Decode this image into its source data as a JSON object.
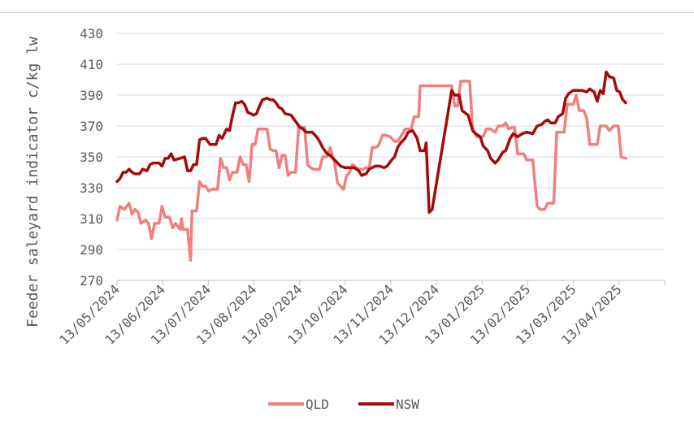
{
  "chart_data": {
    "type": "line",
    "title": "",
    "xlabel": "",
    "ylabel": "Feeder saleyard indicator c/kg lw",
    "ylim": [
      270,
      430
    ],
    "y_ticks": [
      270,
      290,
      310,
      330,
      350,
      370,
      390,
      410,
      430
    ],
    "x_tick_labels": [
      "13/05/2024",
      "13/06/2024",
      "13/07/2024",
      "13/08/2024",
      "13/09/2024",
      "13/10/2024",
      "13/11/2024",
      "13/12/2024",
      "13/01/2025",
      "13/02/2025",
      "13/03/2025",
      "13/04/2025"
    ],
    "x_range": [
      "2024-05-13",
      "2025-05-13"
    ],
    "grid": "horizontal",
    "legend": "bottom",
    "series": [
      {
        "name": "QLD",
        "color": "#f08080",
        "points": [
          [
            "2024-05-13",
            309
          ],
          [
            "2024-05-15",
            318
          ],
          [
            "2024-05-18",
            316
          ],
          [
            "2024-05-21",
            320
          ],
          [
            "2024-05-23",
            313
          ],
          [
            "2024-05-25",
            316
          ],
          [
            "2024-05-27",
            314
          ],
          [
            "2024-05-29",
            307
          ],
          [
            "2024-06-01",
            309
          ],
          [
            "2024-06-03",
            307
          ],
          [
            "2024-06-05",
            297
          ],
          [
            "2024-06-07",
            307
          ],
          [
            "2024-06-10",
            307
          ],
          [
            "2024-06-12",
            318
          ],
          [
            "2024-06-14",
            311
          ],
          [
            "2024-06-17",
            311
          ],
          [
            "2024-06-19",
            304
          ],
          [
            "2024-06-21",
            307
          ],
          [
            "2024-06-24",
            303
          ],
          [
            "2024-06-25",
            310
          ],
          [
            "2024-06-26",
            303
          ],
          [
            "2024-06-29",
            303
          ],
          [
            "2024-07-01",
            283
          ],
          [
            "2024-07-02",
            315
          ],
          [
            "2024-07-05",
            315
          ],
          [
            "2024-07-07",
            334
          ],
          [
            "2024-07-09",
            331
          ],
          [
            "2024-07-11",
            331
          ],
          [
            "2024-07-13",
            328
          ],
          [
            "2024-07-16",
            329
          ],
          [
            "2024-07-19",
            329
          ],
          [
            "2024-07-21",
            349
          ],
          [
            "2024-07-23",
            343
          ],
          [
            "2024-07-25",
            343
          ],
          [
            "2024-07-27",
            335
          ],
          [
            "2024-07-29",
            340
          ],
          [
            "2024-08-01",
            340
          ],
          [
            "2024-08-03",
            350
          ],
          [
            "2024-08-05",
            345
          ],
          [
            "2024-08-07",
            345
          ],
          [
            "2024-08-09",
            334
          ],
          [
            "2024-08-11",
            358
          ],
          [
            "2024-08-13",
            358
          ],
          [
            "2024-08-15",
            368
          ],
          [
            "2024-08-19",
            368
          ],
          [
            "2024-08-21",
            368
          ],
          [
            "2024-08-23",
            355
          ],
          [
            "2024-08-25",
            354
          ],
          [
            "2024-08-27",
            354
          ],
          [
            "2024-08-29",
            343
          ],
          [
            "2024-08-31",
            351
          ],
          [
            "2024-09-02",
            351
          ],
          [
            "2024-09-04",
            338
          ],
          [
            "2024-09-06",
            340
          ],
          [
            "2024-09-09",
            340
          ],
          [
            "2024-09-11",
            369
          ],
          [
            "2024-09-13",
            369
          ],
          [
            "2024-09-15",
            369
          ],
          [
            "2024-09-17",
            345
          ],
          [
            "2024-09-19",
            343
          ],
          [
            "2024-09-21",
            342
          ],
          [
            "2024-09-25",
            342
          ],
          [
            "2024-09-27",
            350
          ],
          [
            "2024-09-30",
            350
          ],
          [
            "2024-10-02",
            356
          ],
          [
            "2024-10-05",
            346
          ],
          [
            "2024-10-07",
            333
          ],
          [
            "2024-10-09",
            331
          ],
          [
            "2024-10-11",
            329
          ],
          [
            "2024-10-13",
            338
          ],
          [
            "2024-10-15",
            340
          ],
          [
            "2024-10-17",
            345
          ],
          [
            "2024-10-21",
            342
          ],
          [
            "2024-10-24",
            342
          ],
          [
            "2024-10-26",
            343
          ],
          [
            "2024-10-28",
            342
          ],
          [
            "2024-10-30",
            356
          ],
          [
            "2024-11-01",
            356
          ],
          [
            "2024-11-03",
            357
          ],
          [
            "2024-11-06",
            364
          ],
          [
            "2024-11-08",
            364
          ],
          [
            "2024-11-11",
            363
          ],
          [
            "2024-11-14",
            360
          ],
          [
            "2024-11-16",
            360
          ],
          [
            "2024-11-18",
            363
          ],
          [
            "2024-11-21",
            368
          ],
          [
            "2024-11-25",
            368
          ],
          [
            "2024-11-27",
            376
          ],
          [
            "2024-11-30",
            376
          ],
          [
            "2024-12-01",
            396
          ],
          [
            "2024-12-10",
            396
          ],
          [
            "2024-12-22",
            396
          ],
          [
            "2024-12-24",
            383
          ],
          [
            "2024-12-26",
            383
          ],
          [
            "2024-12-28",
            399
          ],
          [
            "2025-01-03",
            399
          ],
          [
            "2025-01-05",
            368
          ],
          [
            "2025-01-08",
            363
          ],
          [
            "2025-01-12",
            363
          ],
          [
            "2025-01-14",
            368
          ],
          [
            "2025-01-17",
            368
          ],
          [
            "2025-01-20",
            366
          ],
          [
            "2025-01-22",
            370
          ],
          [
            "2025-01-25",
            370
          ],
          [
            "2025-01-27",
            372
          ],
          [
            "2025-01-29",
            368
          ],
          [
            "2025-01-31",
            369
          ],
          [
            "2025-02-02",
            369
          ],
          [
            "2025-02-04",
            352
          ],
          [
            "2025-02-08",
            352
          ],
          [
            "2025-02-10",
            348
          ],
          [
            "2025-02-14",
            348
          ],
          [
            "2025-02-17",
            318
          ],
          [
            "2025-02-19",
            316
          ],
          [
            "2025-02-22",
            316
          ],
          [
            "2025-02-24",
            320
          ],
          [
            "2025-02-28",
            320
          ],
          [
            "2025-03-02",
            366
          ],
          [
            "2025-03-07",
            366
          ],
          [
            "2025-03-09",
            384
          ],
          [
            "2025-03-13",
            384
          ],
          [
            "2025-03-15",
            390
          ],
          [
            "2025-03-17",
            380
          ],
          [
            "2025-03-20",
            380
          ],
          [
            "2025-03-22",
            375
          ],
          [
            "2025-03-24",
            358
          ],
          [
            "2025-03-29",
            358
          ],
          [
            "2025-03-31",
            370
          ],
          [
            "2025-04-04",
            370
          ],
          [
            "2025-04-06",
            367
          ],
          [
            "2025-04-09",
            370
          ],
          [
            "2025-04-12",
            370
          ],
          [
            "2025-04-14",
            350
          ],
          [
            "2025-04-17",
            349
          ]
        ]
      },
      {
        "name": "NSW",
        "color": "#a50a0a",
        "points": [
          [
            "2024-05-13",
            334
          ],
          [
            "2024-05-15",
            336
          ],
          [
            "2024-05-17",
            340
          ],
          [
            "2024-05-19",
            340
          ],
          [
            "2024-05-21",
            342
          ],
          [
            "2024-05-23",
            340
          ],
          [
            "2024-05-25",
            339
          ],
          [
            "2024-05-28",
            339
          ],
          [
            "2024-05-30",
            342
          ],
          [
            "2024-06-02",
            341
          ],
          [
            "2024-06-04",
            345
          ],
          [
            "2024-06-06",
            346
          ],
          [
            "2024-06-10",
            346
          ],
          [
            "2024-06-12",
            344
          ],
          [
            "2024-06-14",
            349
          ],
          [
            "2024-06-16",
            349
          ],
          [
            "2024-06-18",
            352
          ],
          [
            "2024-06-20",
            348
          ],
          [
            "2024-06-24",
            349
          ],
          [
            "2024-06-27",
            350
          ],
          [
            "2024-06-29",
            341
          ],
          [
            "2024-07-01",
            341
          ],
          [
            "2024-07-03",
            345
          ],
          [
            "2024-07-05",
            345
          ],
          [
            "2024-07-07",
            361
          ],
          [
            "2024-07-09",
            362
          ],
          [
            "2024-07-11",
            362
          ],
          [
            "2024-07-14",
            358
          ],
          [
            "2024-07-18",
            358
          ],
          [
            "2024-07-20",
            364
          ],
          [
            "2024-07-22",
            362
          ],
          [
            "2024-07-25",
            368
          ],
          [
            "2024-07-27",
            367
          ],
          [
            "2024-07-29",
            377
          ],
          [
            "2024-07-31",
            385
          ],
          [
            "2024-08-02",
            385
          ],
          [
            "2024-08-04",
            386
          ],
          [
            "2024-08-06",
            384
          ],
          [
            "2024-08-08",
            379
          ],
          [
            "2024-08-12",
            377
          ],
          [
            "2024-08-14",
            378
          ],
          [
            "2024-08-16",
            383
          ],
          [
            "2024-08-18",
            387
          ],
          [
            "2024-08-21",
            388
          ],
          [
            "2024-08-23",
            387
          ],
          [
            "2024-08-25",
            387
          ],
          [
            "2024-08-27",
            385
          ],
          [
            "2024-08-29",
            382
          ],
          [
            "2024-08-31",
            381
          ],
          [
            "2024-09-02",
            378
          ],
          [
            "2024-09-06",
            377
          ],
          [
            "2024-09-09",
            373
          ],
          [
            "2024-09-12",
            369
          ],
          [
            "2024-09-14",
            368
          ],
          [
            "2024-09-16",
            366
          ],
          [
            "2024-09-20",
            366
          ],
          [
            "2024-09-23",
            363
          ],
          [
            "2024-09-25",
            360
          ],
          [
            "2024-09-27",
            356
          ],
          [
            "2024-09-30",
            352
          ],
          [
            "2024-10-02",
            351
          ],
          [
            "2024-10-05",
            348
          ],
          [
            "2024-10-07",
            346
          ],
          [
            "2024-10-09",
            344
          ],
          [
            "2024-10-12",
            343
          ],
          [
            "2024-10-15",
            343
          ],
          [
            "2024-10-18",
            343
          ],
          [
            "2024-10-21",
            341
          ],
          [
            "2024-10-23",
            338
          ],
          [
            "2024-10-26",
            339
          ],
          [
            "2024-10-28",
            342
          ],
          [
            "2024-11-01",
            344
          ],
          [
            "2024-11-04",
            344
          ],
          [
            "2024-11-07",
            343
          ],
          [
            "2024-11-09",
            344
          ],
          [
            "2024-11-12",
            348
          ],
          [
            "2024-11-14",
            350
          ],
          [
            "2024-11-16",
            356
          ],
          [
            "2024-11-18",
            359
          ],
          [
            "2024-11-21",
            362
          ],
          [
            "2024-11-23",
            366
          ],
          [
            "2024-11-26",
            367
          ],
          [
            "2024-11-29",
            362
          ],
          [
            "2024-12-01",
            354
          ],
          [
            "2024-12-04",
            354
          ],
          [
            "2024-12-05",
            359
          ],
          [
            "2024-12-07",
            314
          ],
          [
            "2024-12-09",
            316
          ],
          [
            "2024-12-22",
            393
          ],
          [
            "2024-12-24",
            390
          ],
          [
            "2024-12-27",
            390
          ],
          [
            "2024-12-29",
            380
          ],
          [
            "2025-01-02",
            377
          ],
          [
            "2025-01-05",
            367
          ],
          [
            "2025-01-07",
            365
          ],
          [
            "2025-01-10",
            363
          ],
          [
            "2025-01-12",
            357
          ],
          [
            "2025-01-15",
            354
          ],
          [
            "2025-01-17",
            349
          ],
          [
            "2025-01-20",
            346
          ],
          [
            "2025-01-22",
            348
          ],
          [
            "2025-01-25",
            353
          ],
          [
            "2025-01-27",
            354
          ],
          [
            "2025-01-30",
            362
          ],
          [
            "2025-02-01",
            365
          ],
          [
            "2025-02-04",
            363
          ],
          [
            "2025-02-07",
            365
          ],
          [
            "2025-02-10",
            366
          ],
          [
            "2025-02-14",
            365
          ],
          [
            "2025-02-17",
            370
          ],
          [
            "2025-02-20",
            371
          ],
          [
            "2025-02-22",
            373
          ],
          [
            "2025-02-24",
            374
          ],
          [
            "2025-02-26",
            372
          ],
          [
            "2025-03-01",
            372
          ],
          [
            "2025-03-03",
            376
          ],
          [
            "2025-03-06",
            378
          ],
          [
            "2025-03-08",
            388
          ],
          [
            "2025-03-10",
            391
          ],
          [
            "2025-03-13",
            393
          ],
          [
            "2025-03-16",
            393
          ],
          [
            "2025-03-19",
            393
          ],
          [
            "2025-03-22",
            392
          ],
          [
            "2025-03-24",
            394
          ],
          [
            "2025-03-27",
            392
          ],
          [
            "2025-03-29",
            386
          ],
          [
            "2025-03-31",
            393
          ],
          [
            "2025-04-02",
            391
          ],
          [
            "2025-04-04",
            405
          ],
          [
            "2025-04-06",
            402
          ],
          [
            "2025-04-09",
            401
          ],
          [
            "2025-04-11",
            393
          ],
          [
            "2025-04-13",
            392
          ],
          [
            "2025-04-15",
            387
          ],
          [
            "2025-04-17",
            385
          ]
        ]
      }
    ]
  }
}
